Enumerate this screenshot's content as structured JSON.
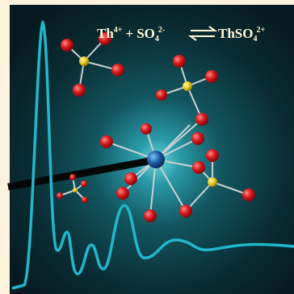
{
  "equation": {
    "reactant1": "Th",
    "reactant1_charge": "4+",
    "plus": "+",
    "reactant2": "SO",
    "reactant2_sub": "4",
    "reactant2_charge": "2-",
    "product": "ThSO",
    "product_sub": "4",
    "product_charge": "2+"
  }
}
